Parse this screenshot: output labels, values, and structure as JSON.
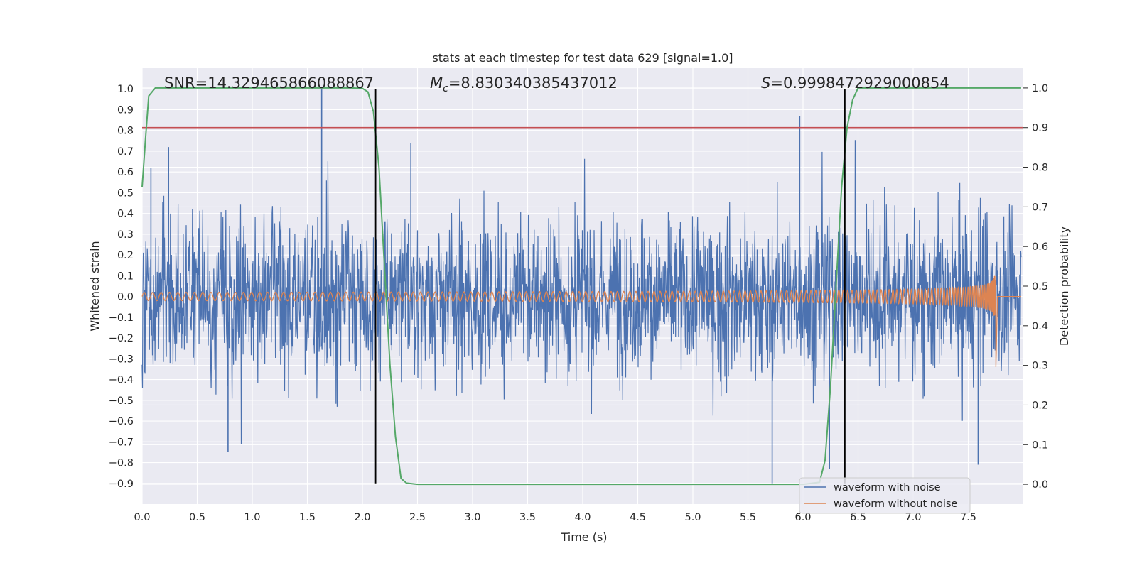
{
  "chart_data": {
    "type": "line",
    "title": "stats at each timestep for test data 629 [signal=1.0]",
    "xlabel": "Time (s)",
    "ylabel": "Whitened strain",
    "y2label": "Detection probability",
    "xlim": [
      0.0,
      8.0
    ],
    "ylim": [
      -1.0,
      1.1
    ],
    "y2lim": [
      -0.05,
      1.05
    ],
    "xticks": [
      0.0,
      0.5,
      1.0,
      1.5,
      2.0,
      2.5,
      3.0,
      3.5,
      4.0,
      4.5,
      5.0,
      5.5,
      6.0,
      6.5,
      7.0,
      7.5
    ],
    "yticks": [
      -0.9,
      -0.8,
      -0.7,
      -0.6,
      -0.5,
      -0.4,
      -0.3,
      -0.2,
      -0.1,
      0.0,
      0.1,
      0.2,
      0.3,
      0.4,
      0.5,
      0.6,
      0.7,
      0.8,
      0.9,
      1.0
    ],
    "y2ticks": [
      0.0,
      0.1,
      0.2,
      0.3,
      0.4,
      0.5,
      0.6,
      0.7,
      0.8,
      0.9,
      1.0
    ],
    "grid": true,
    "legend_position": "lower-right",
    "annotations": {
      "snr": "SNR=14.329465866088867",
      "mc_symbol": "M",
      "mc_sub": "c",
      "mc_value": "=8.830340385437012",
      "s_symbol": "S",
      "s_value": "=0.9998472929000854"
    },
    "series": [
      {
        "name": "waveform with noise",
        "color": "#4c72b0",
        "axis": "left",
        "envelope_typical": 0.33,
        "notable_peaks": [
          {
            "x": 0.08,
            "y": 0.62
          },
          {
            "x": 0.24,
            "y": 0.72
          },
          {
            "x": 0.78,
            "y": -0.75
          },
          {
            "x": 1.63,
            "y": 1.0
          },
          {
            "x": 2.44,
            "y": 0.74
          },
          {
            "x": 5.72,
            "y": -0.9
          },
          {
            "x": 5.97,
            "y": 0.87
          },
          {
            "x": 6.24,
            "y": -0.83
          },
          {
            "x": 7.59,
            "y": -0.81
          }
        ]
      },
      {
        "name": "waveform without noise",
        "color": "#dd8452",
        "axis": "left",
        "t_merge": 7.75,
        "amplitude_start": 0.02,
        "amplitude_peak_pos": 0.53,
        "amplitude_peak_neg": -0.37
      },
      {
        "name": "detection probability",
        "color": "#55a868",
        "axis": "right",
        "x": [
          0.0,
          0.03,
          0.06,
          0.12,
          0.2,
          0.5,
          1.0,
          1.5,
          1.9,
          2.0,
          2.05,
          2.1,
          2.15,
          2.2,
          2.25,
          2.3,
          2.35,
          2.4,
          2.5,
          3.0,
          4.0,
          5.0,
          6.0,
          6.15,
          6.2,
          6.25,
          6.3,
          6.35,
          6.4,
          6.45,
          6.5,
          7.0,
          7.5,
          7.98
        ],
        "values": [
          0.75,
          0.87,
          0.98,
          1.0,
          1.0,
          1.0,
          1.0,
          1.0,
          1.0,
          0.999,
          0.99,
          0.94,
          0.8,
          0.55,
          0.3,
          0.12,
          0.015,
          0.003,
          0.0,
          0.0,
          0.0,
          0.0,
          0.0,
          0.005,
          0.06,
          0.25,
          0.5,
          0.75,
          0.9,
          0.97,
          1.0,
          1.0,
          1.0,
          1.0
        ]
      }
    ],
    "threshold": {
      "value": 0.9,
      "color": "#c44e52",
      "axis": "right"
    },
    "vlines": [
      {
        "x": 2.12,
        "color": "#000000"
      },
      {
        "x": 6.38,
        "color": "#000000"
      }
    ]
  }
}
